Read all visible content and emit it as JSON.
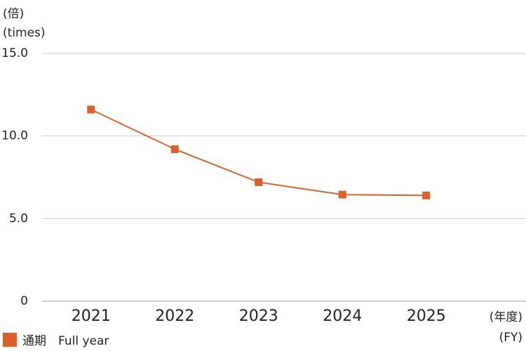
{
  "chart_data": {
    "type": "line",
    "y_unit_label": [
      "(倍)",
      "(times)"
    ],
    "x_unit_label": [
      "(年度)",
      "(FY)"
    ],
    "categories": [
      "2021",
      "2022",
      "2023",
      "2024",
      "2025"
    ],
    "series": [
      {
        "name": "通期　Full year",
        "color": "#d9622b",
        "values": [
          11.6,
          9.2,
          7.2,
          6.45,
          6.4
        ]
      }
    ],
    "ylim": [
      0,
      15
    ],
    "yticks": [
      0,
      {
        "value": 5,
        "label": "5.0"
      },
      {
        "value": 10,
        "label": "10.0"
      },
      {
        "value": 15,
        "label": "15.0"
      }
    ],
    "grid": true
  }
}
